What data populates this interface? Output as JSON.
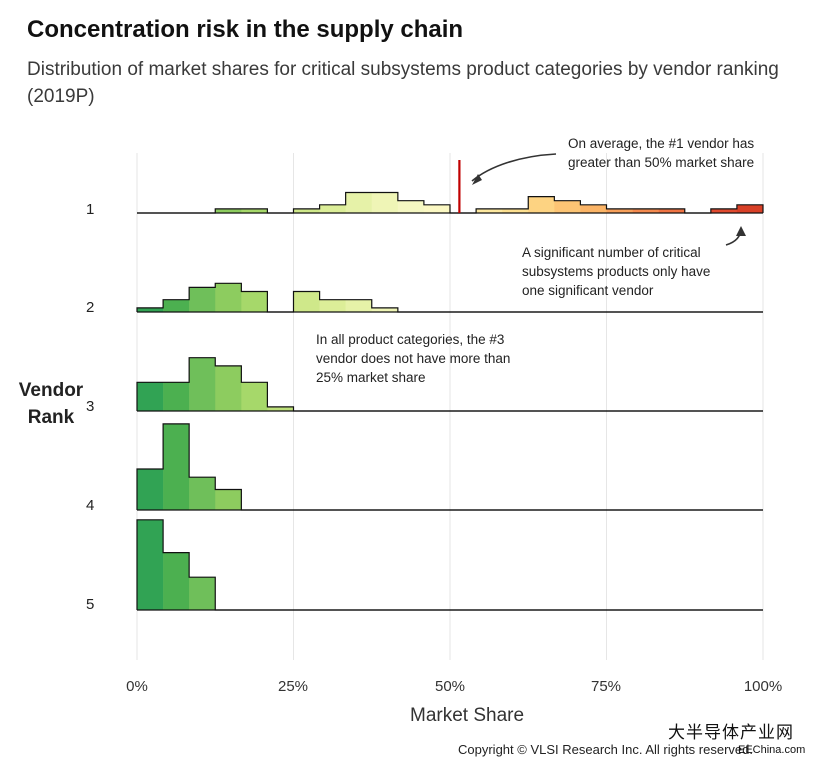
{
  "title": "Concentration risk in the supply chain",
  "subtitle": "Distribution of market shares for critical subsystems product categories by vendor ranking (2019P)",
  "watermark": {
    "line1": "大半导体产业网",
    "line2": "EEChina.com"
  },
  "copyright": "Copyright © VLSI Research Inc. All rights reserved.",
  "annotations": {
    "avg_note": "On average, the #1 vendor has greater than 50% market share",
    "single_vendor_note": "A significant number of critical subsystems products only have one significant vendor",
    "third_vendor_note": "In all product categories, the #3 vendor does not have more than 25% market share"
  },
  "chart_data": {
    "type": "ridgeline-histogram",
    "title": "Concentration risk in the supply chain",
    "xlabel": "Market Share",
    "ylabel": "Vendor Rank",
    "xlim": [
      0,
      100
    ],
    "x_ticks": [
      "0%",
      "25%",
      "50%",
      "75%",
      "100%"
    ],
    "bin_edges": [
      0,
      4.17,
      8.33,
      12.5,
      16.67,
      20.83,
      25,
      29.17,
      33.33,
      37.5,
      41.67,
      45.83,
      50,
      54.17,
      58.33,
      62.5,
      66.67,
      70.83,
      75,
      79.17,
      83.33,
      87.5,
      91.67,
      95.83,
      100
    ],
    "mean_marker": {
      "rank": "1",
      "value": 51.5,
      "color": "#c00000"
    },
    "series": [
      {
        "name": "1",
        "counts": [
          0,
          0,
          0,
          1,
          1,
          0,
          1,
          2,
          5,
          5,
          3,
          2,
          0,
          1,
          1,
          4,
          3,
          2,
          1,
          1,
          1,
          0,
          1,
          2
        ]
      },
      {
        "name": "2",
        "counts": [
          1,
          3,
          6,
          7,
          5,
          0,
          5,
          3,
          3,
          1,
          0,
          0,
          0,
          0,
          0,
          0,
          0,
          0,
          0,
          0,
          0,
          0,
          0,
          0
        ]
      },
      {
        "name": "3",
        "counts": [
          7,
          7,
          13,
          11,
          7,
          1,
          0,
          0,
          0,
          0,
          0,
          0,
          0,
          0,
          0,
          0,
          0,
          0,
          0,
          0,
          0,
          0,
          0,
          0
        ]
      },
      {
        "name": "4",
        "counts": [
          10,
          21,
          8,
          5,
          0,
          0,
          0,
          0,
          0,
          0,
          0,
          0,
          0,
          0,
          0,
          0,
          0,
          0,
          0,
          0,
          0,
          0,
          0,
          0
        ]
      },
      {
        "name": "5",
        "counts": [
          22,
          14,
          8,
          0,
          0,
          0,
          0,
          0,
          0,
          0,
          0,
          0,
          0,
          0,
          0,
          0,
          0,
          0,
          0,
          0,
          0,
          0,
          0,
          0
        ]
      }
    ],
    "color_scale": [
      "#31a354",
      "#4cb050",
      "#6fbf5a",
      "#8dcc5f",
      "#a6d86a",
      "#bde07a",
      "#cfe88a",
      "#dcee98",
      "#e6f2a8",
      "#eff5b6",
      "#f5f7c2",
      "#fbf8c3",
      "#fff3b0",
      "#fee9a0",
      "#fde090",
      "#fdd382",
      "#fcc474",
      "#fbb466",
      "#f7a05a",
      "#f48a4f",
      "#ef7444",
      "#e85b38",
      "#e04a2f",
      "#d84027"
    ]
  }
}
